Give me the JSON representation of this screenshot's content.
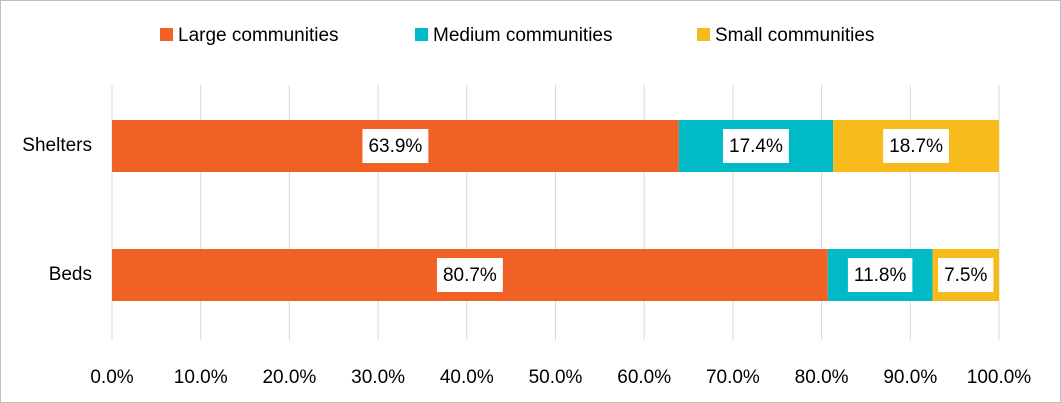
{
  "chart_data": {
    "type": "stacked_bar_horizontal",
    "categories": [
      "Shelters",
      "Beds"
    ],
    "series": [
      {
        "name": "Large communities",
        "color": "#f06125",
        "values": [
          63.9,
          80.7
        ],
        "value_labels": [
          "63.9%",
          "80.7%"
        ]
      },
      {
        "name": "Medium communities",
        "color": "#00bac6",
        "values": [
          17.4,
          11.8
        ],
        "value_labels": [
          "17.4%",
          "11.8%"
        ]
      },
      {
        "name": "Small communities",
        "color": "#f7ba1b",
        "values": [
          18.7,
          7.5
        ],
        "value_labels": [
          "18.7%",
          "7.5%"
        ]
      }
    ],
    "xlim": [
      0,
      100
    ],
    "xticks": [
      {
        "value": 0,
        "label": "0.0%"
      },
      {
        "value": 10,
        "label": "10.0%"
      },
      {
        "value": 20,
        "label": "20.0%"
      },
      {
        "value": 30,
        "label": "30.0%"
      },
      {
        "value": 40,
        "label": "40.0%"
      },
      {
        "value": 50,
        "label": "50.0%"
      },
      {
        "value": 60,
        "label": "60.0%"
      },
      {
        "value": 70,
        "label": "70.0%"
      },
      {
        "value": 80,
        "label": "80.0%"
      },
      {
        "value": 90,
        "label": "90.0%"
      },
      {
        "value": 100,
        "label": "100.0%"
      }
    ],
    "grid": true,
    "legend": "top"
  }
}
